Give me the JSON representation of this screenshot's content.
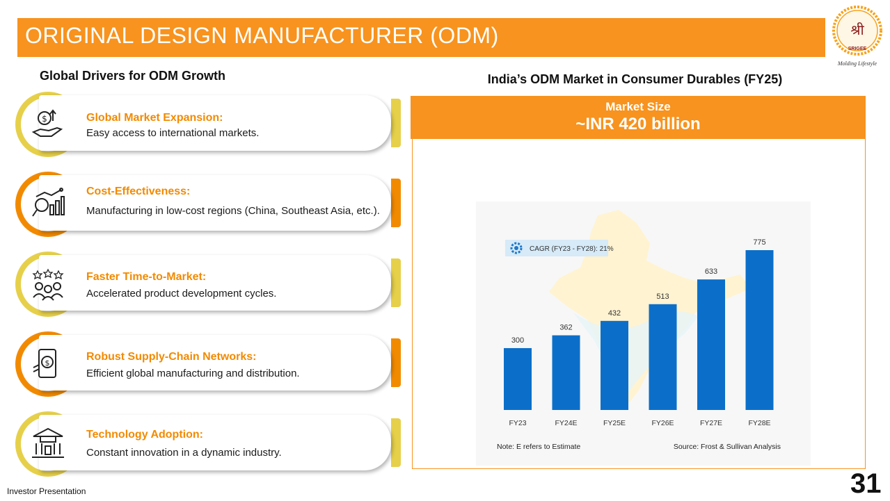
{
  "header": {
    "title": "ORIGINAL DESIGN MANUFACTURER (ODM)"
  },
  "logo": {
    "brand": "SRIGEE",
    "tagline": "Molding Lifestyle",
    "glyph": "श्री"
  },
  "left": {
    "heading": "Global Drivers for ODM Growth",
    "drivers": [
      {
        "title": "Global Market Expansion:",
        "desc": "Easy access to international markets.",
        "icon": "money-growth-icon",
        "color": "#e6d04a"
      },
      {
        "title": "Cost-Effectiveness:",
        "desc": "Manufacturing in low-cost regions (China, Southeast Asia, etc.).",
        "icon": "analytics-icon",
        "color": "#f28a00"
      },
      {
        "title": "Faster Time-to-Market:",
        "desc": "Accelerated product development cycles.",
        "icon": "team-rating-icon",
        "color": "#e6d04a"
      },
      {
        "title": "Robust Supply-Chain Networks:",
        "desc": "Efficient global manufacturing and distribution.",
        "icon": "mobile-payment-icon",
        "color": "#f28a00"
      },
      {
        "title": "Technology Adoption:",
        "desc": "Constant innovation in a dynamic industry.",
        "icon": "government-building-icon",
        "color": "#e6d04a"
      }
    ]
  },
  "right": {
    "heading": "India’s ODM Market in Consumer Durables (FY25)",
    "market_size_label": "Market Size",
    "market_size_value": "~INR 420 billion"
  },
  "chart_data": {
    "type": "bar",
    "categories": [
      "FY23",
      "FY24E",
      "FY25E",
      "FY26E",
      "FY27E",
      "FY28E"
    ],
    "values": [
      300,
      362,
      432,
      513,
      633,
      775
    ],
    "ylim": [
      0,
      800
    ],
    "annotation": "CAGR (FY23 - FY28): 21%",
    "note": "Note: E refers to Estimate",
    "source": "Source: Frost & Sullivan Analysis",
    "bar_color": "#0b6fc9",
    "grid": false,
    "legend": "none"
  },
  "footer": {
    "left": "Investor Presentation",
    "page": "31"
  },
  "colors": {
    "accent": "#f7931e",
    "title_orange": "#f28a00",
    "yellow": "#e6d04a"
  }
}
